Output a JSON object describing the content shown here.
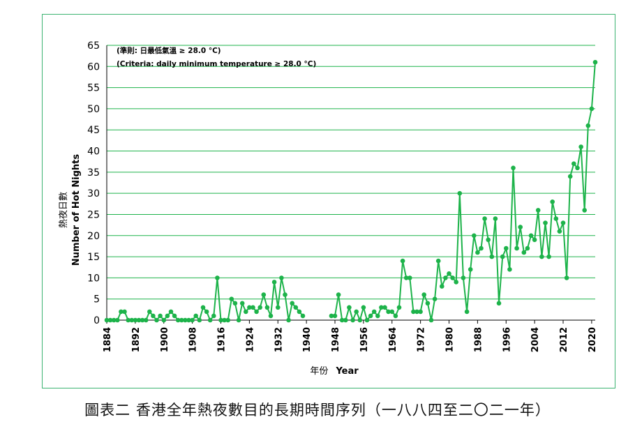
{
  "chart_data": {
    "type": "line",
    "ylabel_zh": "熱夜日數",
    "ylabel_en": "Number of Hot Nights",
    "xlabel_zh": "年份",
    "xlabel_en": "Year",
    "annotation_zh": "(準則: 日最低氣溫 ≥ 28.0 °C)",
    "annotation_en": "(Criteria: daily minimum temperature ≥ 28.0 °C)",
    "xlim": [
      1884,
      2021
    ],
    "ylim": [
      0,
      65
    ],
    "y_ticks": [
      0,
      5,
      10,
      15,
      20,
      25,
      30,
      35,
      40,
      45,
      50,
      55,
      60,
      65
    ],
    "x_ticks": [
      1884,
      1892,
      1900,
      1908,
      1916,
      1924,
      1932,
      1940,
      1948,
      1956,
      1964,
      1972,
      1980,
      1988,
      1996,
      2004,
      2012,
      2020
    ],
    "grid": "horizontal",
    "series_color": "#1db34a",
    "series": [
      {
        "x": [
          1884,
          1885,
          1886,
          1887,
          1888,
          1889,
          1890,
          1891,
          1892,
          1893,
          1894,
          1895,
          1896,
          1897,
          1898,
          1899,
          1900,
          1901,
          1902,
          1903,
          1904,
          1905,
          1906,
          1907,
          1908,
          1909,
          1910,
          1911,
          1912,
          1913,
          1914,
          1915,
          1916,
          1917,
          1918,
          1919,
          1920,
          1921,
          1922,
          1923,
          1924,
          1925,
          1926,
          1927,
          1928,
          1929,
          1930,
          1931,
          1932,
          1933,
          1934,
          1935,
          1936,
          1937,
          1938,
          1939
        ],
        "values": [
          0,
          0,
          0,
          0,
          2,
          2,
          0,
          0,
          0,
          0,
          0,
          0,
          2,
          1,
          0,
          1,
          0,
          1,
          2,
          1,
          0,
          0,
          0,
          0,
          0,
          1,
          0,
          3,
          2,
          0,
          1,
          10,
          0,
          0,
          0,
          5,
          4,
          0,
          4,
          2,
          3,
          3,
          2,
          3,
          6,
          3,
          1,
          9,
          3,
          10,
          6,
          0,
          4,
          3,
          2,
          1
        ]
      },
      {
        "x": [
          1947,
          1948,
          1949,
          1950,
          1951,
          1952,
          1953,
          1954,
          1955,
          1956,
          1957,
          1958,
          1959,
          1960,
          1961,
          1962,
          1963,
          1964,
          1965,
          1966,
          1967,
          1968,
          1969,
          1970,
          1971,
          1972,
          1973,
          1974,
          1975,
          1976,
          1977,
          1978,
          1979,
          1980,
          1981,
          1982,
          1983,
          1984,
          1985,
          1986,
          1987,
          1988,
          1989,
          1990,
          1991,
          1992,
          1993,
          1994,
          1995,
          1996,
          1997,
          1998,
          1999,
          2000,
          2001,
          2002,
          2003,
          2004,
          2005,
          2006,
          2007,
          2008,
          2009,
          2010,
          2011,
          2012,
          2013,
          2014,
          2015,
          2016,
          2017,
          2018,
          2019,
          2020,
          2021
        ],
        "values": [
          1,
          1,
          6,
          0,
          0,
          3,
          0,
          2,
          0,
          3,
          0,
          1,
          2,
          1,
          3,
          3,
          2,
          2,
          1,
          3,
          14,
          10,
          10,
          2,
          2,
          2,
          6,
          4,
          0,
          5,
          14,
          8,
          10,
          11,
          10,
          9,
          30,
          10,
          2,
          12,
          20,
          16,
          17,
          24,
          19,
          15,
          24,
          4,
          15,
          17,
          12,
          36,
          17,
          22,
          16,
          17,
          20,
          19,
          26,
          15,
          23,
          15,
          28,
          24,
          21,
          23,
          10,
          34,
          37,
          36,
          41,
          26,
          46,
          50,
          61
        ]
      }
    ]
  },
  "caption": "圖表二 香港全年熱夜數目的長期時間序列（一八八四至二〇二一年）"
}
